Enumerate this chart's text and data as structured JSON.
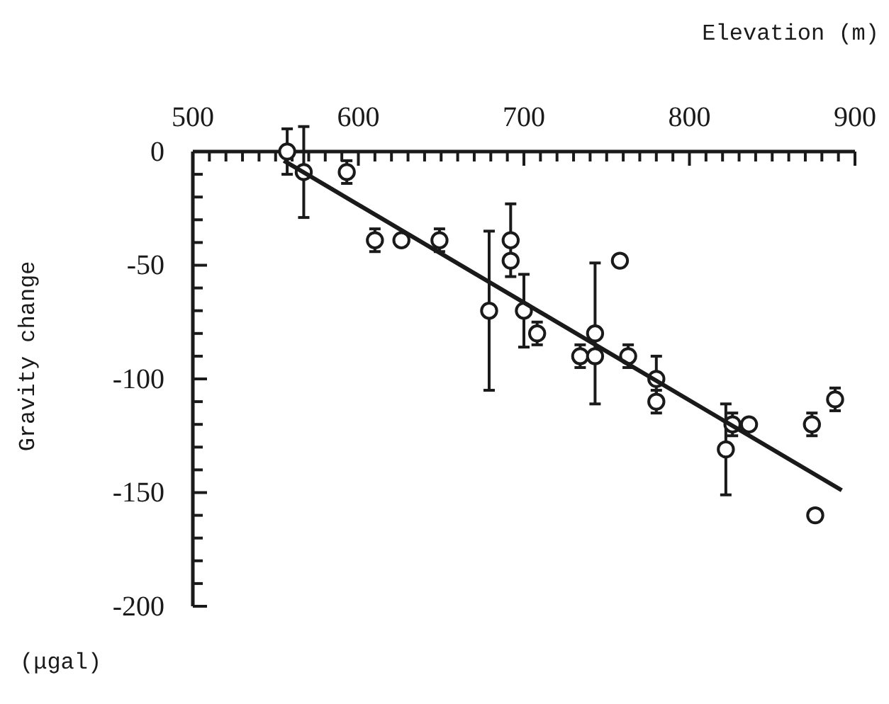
{
  "chart_data": {
    "type": "scatter",
    "xlabel": "Elevation (m)",
    "ylabel": "Gravity change",
    "annotations": [
      "(μgal)"
    ],
    "xlim": [
      500,
      900
    ],
    "ylim": [
      -200,
      0
    ],
    "xticks": [
      500,
      {
        "value": 510,
        "label": null
      },
      {
        "value": 520,
        "label": null
      },
      {
        "value": 530,
        "label": null
      },
      {
        "value": 540,
        "label": null
      },
      {
        "value": 550,
        "label": null
      },
      {
        "value": 560,
        "label": null
      },
      {
        "value": 570,
        "label": null
      },
      {
        "value": 580,
        "label": null
      },
      {
        "value": 590,
        "label": null
      },
      600,
      {
        "value": 610,
        "label": null
      },
      {
        "value": 620,
        "label": null
      },
      {
        "value": 630,
        "label": null
      },
      {
        "value": 640,
        "label": null
      },
      {
        "value": 650,
        "label": null
      },
      {
        "value": 660,
        "label": null
      },
      {
        "value": 670,
        "label": null
      },
      {
        "value": 680,
        "label": null
      },
      {
        "value": 690,
        "label": null
      },
      700,
      {
        "value": 710,
        "label": null
      },
      {
        "value": 720,
        "label": null
      },
      {
        "value": 730,
        "label": null
      },
      {
        "value": 740,
        "label": null
      },
      {
        "value": 750,
        "label": null
      },
      {
        "value": 760,
        "label": null
      },
      {
        "value": 770,
        "label": null
      },
      {
        "value": 780,
        "label": null
      },
      {
        "value": 790,
        "label": null
      },
      800,
      {
        "value": 810,
        "label": null
      },
      {
        "value": 820,
        "label": null
      },
      {
        "value": 830,
        "label": null
      },
      {
        "value": 840,
        "label": null
      },
      {
        "value": 850,
        "label": null
      },
      {
        "value": 860,
        "label": null
      },
      {
        "value": 870,
        "label": null
      },
      {
        "value": 880,
        "label": null
      },
      {
        "value": 890,
        "label": null
      },
      900
    ],
    "yticks": [
      0,
      {
        "value": -10,
        "label": null
      },
      {
        "value": -20,
        "label": null
      },
      {
        "value": -30,
        "label": null
      },
      {
        "value": -40,
        "label": null
      },
      -50,
      {
        "value": -60,
        "label": null
      },
      {
        "value": -70,
        "label": null
      },
      {
        "value": -80,
        "label": null
      },
      {
        "value": -90,
        "label": null
      },
      -100,
      {
        "value": -110,
        "label": null
      },
      {
        "value": -120,
        "label": null
      },
      {
        "value": -130,
        "label": null
      },
      {
        "value": -140,
        "label": null
      },
      -150,
      {
        "value": -160,
        "label": null
      },
      {
        "value": -170,
        "label": null
      },
      {
        "value": -180,
        "label": null
      },
      {
        "value": -190,
        "label": null
      },
      -200
    ],
    "grid": false,
    "series": [
      {
        "marker": "circle",
        "color": "#1a1a1a",
        "x": [
          557,
          567,
          593,
          610,
          626,
          649,
          679,
          692,
          692,
          700,
          708,
          734,
          743,
          743,
          758,
          763,
          780,
          780,
          822,
          826,
          836,
          874,
          876,
          888
        ],
        "values": [
          0,
          -9,
          -9,
          -39,
          -39,
          -39,
          -70,
          -39,
          -48,
          -70,
          -80,
          -90,
          -80,
          -90,
          -48,
          -90,
          -100,
          -110,
          -131,
          -120,
          -120,
          -120,
          -160,
          -109
        ],
        "errors": [
          10,
          20,
          5,
          5,
          null,
          5,
          35,
          16,
          null,
          16,
          5,
          5,
          31,
          null,
          null,
          5,
          10,
          5,
          20,
          5,
          null,
          5,
          null,
          5
        ]
      },
      {
        "type": "line",
        "color": "#1a1a1a",
        "line_style": "solid",
        "x": [
          555,
          892
        ],
        "values": [
          -4,
          -149
        ]
      }
    ]
  }
}
